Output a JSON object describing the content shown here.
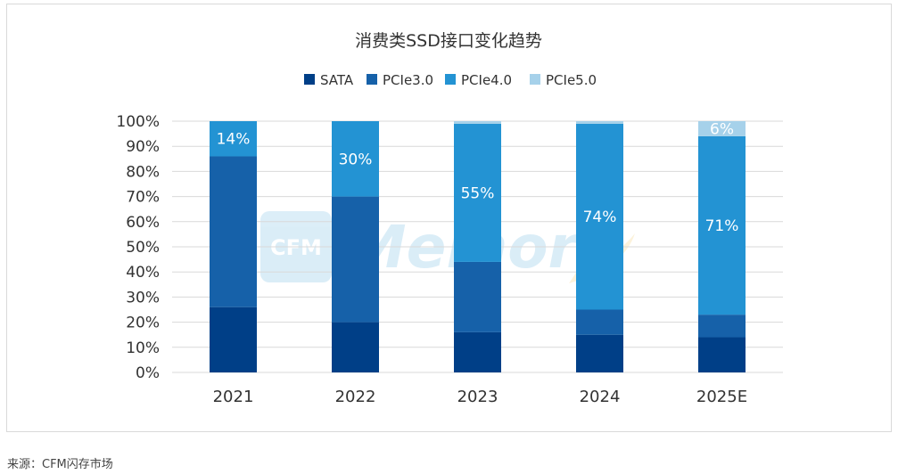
{
  "source_note": "来源：CFM闪存市场",
  "watermark": {
    "logo_text": "CFM",
    "word": "Memory"
  },
  "colors": {
    "SATA": "#003f87",
    "PCIe3.0": "#1661a9",
    "PCIe4.0": "#2393d3",
    "PCIe5.0": "#a6d1ea",
    "grid": "#d9d9d9",
    "label_text": "#ffffff"
  },
  "chart_data": {
    "type": "bar",
    "stacked": true,
    "title": "消费类SSD接口变化趋势",
    "xlabel": "",
    "ylabel": "",
    "ylim": [
      0,
      100
    ],
    "y_tick_labels": [
      "0%",
      "10%",
      "20%",
      "30%",
      "40%",
      "50%",
      "60%",
      "70%",
      "80%",
      "90%",
      "100%"
    ],
    "categories": [
      "2021",
      "2022",
      "2023",
      "2024",
      "2025E"
    ],
    "legend_position": "top-center",
    "grid": true,
    "series": [
      {
        "name": "SATA",
        "values": [
          26,
          20,
          16,
          15,
          14
        ]
      },
      {
        "name": "PCIe3.0",
        "values": [
          60,
          50,
          28,
          10,
          9
        ]
      },
      {
        "name": "PCIe4.0",
        "values": [
          14,
          30,
          55,
          74,
          71
        ]
      },
      {
        "name": "PCIe5.0",
        "values": [
          0,
          0,
          1,
          1,
          6
        ]
      }
    ],
    "data_labels": [
      {
        "series": "PCIe4.0",
        "category": "2021",
        "text": "14%"
      },
      {
        "series": "PCIe4.0",
        "category": "2022",
        "text": "30%"
      },
      {
        "series": "PCIe4.0",
        "category": "2023",
        "text": "55%"
      },
      {
        "series": "PCIe4.0",
        "category": "2024",
        "text": "74%"
      },
      {
        "series": "PCIe4.0",
        "category": "2025E",
        "text": "71%"
      },
      {
        "series": "PCIe5.0",
        "category": "2025E",
        "text": "6%"
      }
    ]
  }
}
